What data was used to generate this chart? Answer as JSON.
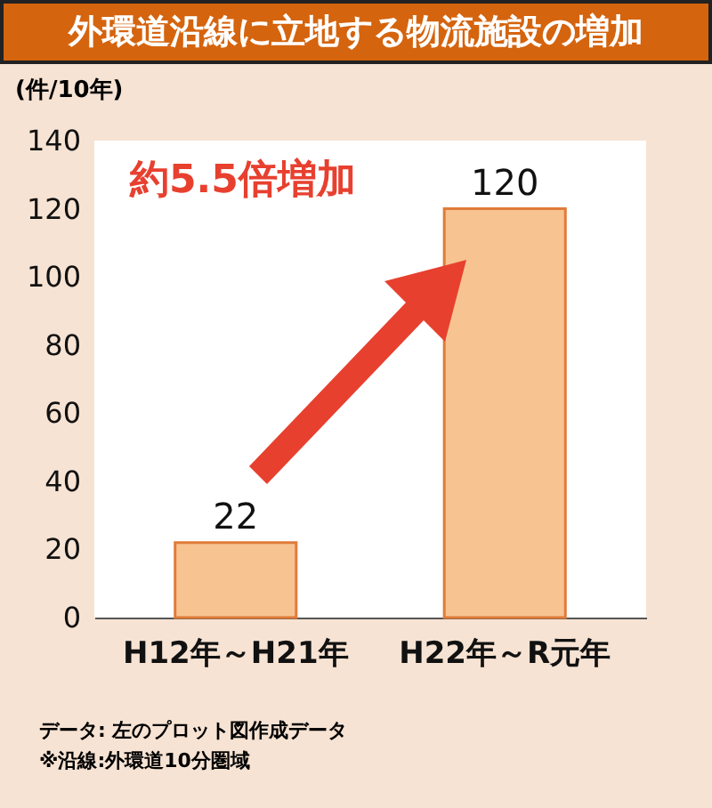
{
  "chart_data": {
    "type": "bar",
    "title": "外環道沿線に立地する物流施設の増加",
    "ylabel": "(件/10年)",
    "categories": [
      "H12年～H21年",
      "H22年～R元年"
    ],
    "values": [
      22,
      120
    ],
    "color": "#f7c391",
    "ylim": [
      0,
      140
    ],
    "yticks": [
      0,
      20,
      40,
      60,
      80,
      100,
      120,
      140
    ],
    "data_labels": true,
    "annotations": [
      "約5.5倍増加",
      "データ: 左のプロット図作成データ",
      "※沿線:外環道10分圏域"
    ]
  }
}
